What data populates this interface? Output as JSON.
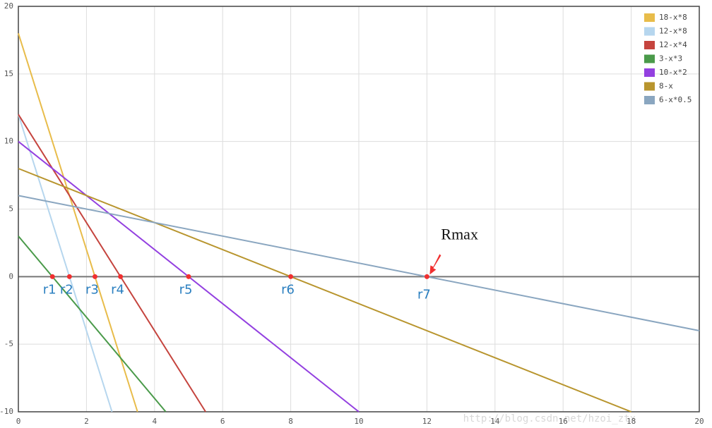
{
  "chart_data": {
    "type": "line",
    "xlim": [
      0,
      20
    ],
    "ylim": [
      -10,
      20
    ],
    "xticks": [
      0,
      2,
      4,
      6,
      8,
      10,
      12,
      14,
      16,
      18,
      20
    ],
    "yticks": [
      -10,
      -5,
      0,
      5,
      10,
      15,
      20
    ],
    "grid": true,
    "legend": "top-right",
    "series": [
      {
        "name": "18-x*8",
        "color": "#e8bc4a",
        "x": [
          0,
          3.5
        ],
        "values": [
          18,
          -10
        ]
      },
      {
        "name": "12-x*8",
        "color": "#b6d6ee",
        "x": [
          0,
          2.75
        ],
        "values": [
          12,
          -10
        ]
      },
      {
        "name": "12-x*4",
        "color": "#c5443e",
        "x": [
          0,
          5.5
        ],
        "values": [
          12,
          -10
        ]
      },
      {
        "name": "3-x*3",
        "color": "#4a9a4a",
        "x": [
          0,
          4.33
        ],
        "values": [
          3,
          -10
        ]
      },
      {
        "name": "10-x*2",
        "color": "#9340e0",
        "x": [
          0,
          10
        ],
        "values": [
          10,
          -10
        ]
      },
      {
        "name": "8-x",
        "color": "#b8952e",
        "x": [
          0,
          18
        ],
        "values": [
          8,
          -10
        ]
      },
      {
        "name": "6-x*0.5",
        "color": "#8aa6c0",
        "x": [
          0,
          20
        ],
        "values": [
          6,
          -4
        ]
      }
    ],
    "points": {
      "color": "#f03030",
      "x": [
        1,
        1.5,
        2.25,
        3,
        5,
        8,
        12
      ],
      "values": [
        0,
        0,
        0,
        0,
        0,
        0,
        0
      ],
      "labels": [
        "r1",
        "r2",
        "r3",
        "r4",
        "r5",
        "r6",
        "r7"
      ]
    },
    "annotation": "Rmax",
    "watermark": "http://blog.csdn.net/hzoi_ztx"
  }
}
